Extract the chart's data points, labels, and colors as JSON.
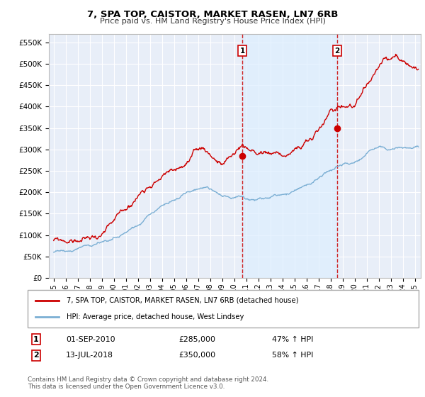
{
  "title": "7, SPA TOP, CAISTOR, MARKET RASEN, LN7 6RB",
  "subtitle": "Price paid vs. HM Land Registry's House Price Index (HPI)",
  "ylim": [
    0,
    570000
  ],
  "yticks": [
    0,
    50000,
    100000,
    150000,
    200000,
    250000,
    300000,
    350000,
    400000,
    450000,
    500000,
    550000
  ],
  "xlim_start": 1994.6,
  "xlim_end": 2025.5,
  "red_color": "#cc0000",
  "blue_color": "#7bafd4",
  "shade_color": "#ddeeff",
  "bg_color": "#e8eef8",
  "grid_color": "#ffffff",
  "marker1_x": 2010.67,
  "marker1_y": 285000,
  "marker1_label": "1",
  "marker2_x": 2018.54,
  "marker2_y": 350000,
  "marker2_label": "2",
  "vline1_x": 2010.67,
  "vline2_x": 2018.54,
  "legend_red_label": "7, SPA TOP, CAISTOR, MARKET RASEN, LN7 6RB (detached house)",
  "legend_blue_label": "HPI: Average price, detached house, West Lindsey",
  "annotation1_date": "01-SEP-2010",
  "annotation1_price": "£285,000",
  "annotation1_hpi": "47% ↑ HPI",
  "annotation2_date": "13-JUL-2018",
  "annotation2_price": "£350,000",
  "annotation2_hpi": "58% ↑ HPI",
  "footnote": "Contains HM Land Registry data © Crown copyright and database right 2024.\nThis data is licensed under the Open Government Licence v3.0."
}
